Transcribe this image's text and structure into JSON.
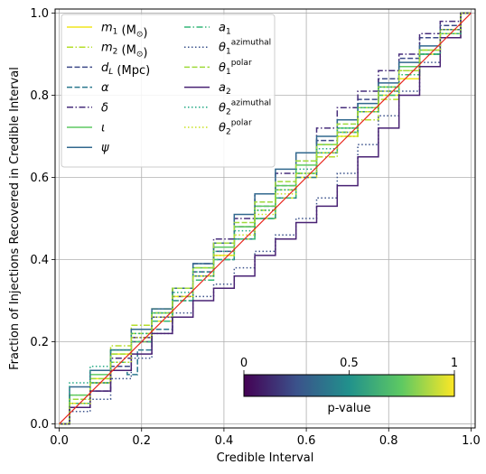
{
  "chart_data": {
    "type": "line",
    "title": "",
    "xlabel": "Credible Interval",
    "ylabel": "Fraction of Injections Recovered in Credible Interval",
    "xlim": [
      -0.01,
      1.01
    ],
    "ylim": [
      -0.01,
      1.01
    ],
    "xticks": [
      "0.0",
      "0.2",
      "0.4",
      "0.6",
      "0.8",
      "1.0"
    ],
    "yticks": [
      "0.0",
      "0.2",
      "0.4",
      "0.6",
      "0.8",
      "1.0"
    ],
    "grid": true,
    "legend_position": "upper-left",
    "diagonal": {
      "x": [
        0,
        1
      ],
      "y": [
        0,
        1
      ],
      "color": "#e8251b"
    },
    "colorbar": {
      "label": "p-value",
      "ticks": [
        "0",
        "0.5",
        "1"
      ],
      "colors": [
        "#440154",
        "#3b528b",
        "#21918c",
        "#5ec962",
        "#fde725"
      ]
    },
    "series": [
      {
        "name": "$m_1$ (M$_\\odot$)",
        "legend_parts": [
          {
            "t": "m",
            "i": true
          },
          {
            "t": "1",
            "sub": true
          },
          {
            "t": " (M"
          },
          {
            "t": "⊙",
            "sub": true
          },
          {
            "t": ")"
          }
        ],
        "color": "#f1e51d",
        "style": "solid",
        "x": [
          0,
          0.05,
          0.1,
          0.15,
          0.2,
          0.25,
          0.3,
          0.35,
          0.4,
          0.45,
          0.5,
          0.55,
          0.6,
          0.65,
          0.7,
          0.75,
          0.8,
          0.85,
          0.9,
          0.95,
          1
        ],
        "y": [
          0,
          0.05,
          0.11,
          0.17,
          0.2,
          0.25,
          0.31,
          0.36,
          0.41,
          0.45,
          0.5,
          0.55,
          0.6,
          0.66,
          0.7,
          0.76,
          0.8,
          0.84,
          0.9,
          0.95,
          1
        ]
      },
      {
        "name": "$m_2$ (M$_\\odot$)",
        "legend_parts": [
          {
            "t": "m",
            "i": true
          },
          {
            "t": "2",
            "sub": true
          },
          {
            "t": " (M"
          },
          {
            "t": "⊙",
            "sub": true
          },
          {
            "t": ")"
          }
        ],
        "color": "#b5de2b",
        "style": "dashdot",
        "x": [
          0,
          0.05,
          0.1,
          0.15,
          0.2,
          0.25,
          0.3,
          0.35,
          0.4,
          0.45,
          0.5,
          0.55,
          0.6,
          0.65,
          0.7,
          0.75,
          0.8,
          0.85,
          0.9,
          0.95,
          1
        ],
        "y": [
          0,
          0.07,
          0.13,
          0.19,
          0.24,
          0.28,
          0.33,
          0.38,
          0.43,
          0.48,
          0.52,
          0.57,
          0.61,
          0.65,
          0.7,
          0.74,
          0.79,
          0.85,
          0.9,
          0.94,
          1
        ]
      },
      {
        "name": "$d_L$ (Mpc)",
        "legend_parts": [
          {
            "t": "d",
            "i": true
          },
          {
            "t": "L",
            "sub": true,
            "i": true
          },
          {
            "t": " (Mpc)"
          }
        ],
        "color": "#3e4a89",
        "style": "dashed",
        "x": [
          0,
          0.05,
          0.1,
          0.15,
          0.2,
          0.25,
          0.3,
          0.35,
          0.4,
          0.45,
          0.5,
          0.55,
          0.6,
          0.65,
          0.7,
          0.75,
          0.8,
          0.85,
          0.9,
          0.95,
          1
        ],
        "y": [
          0,
          0.04,
          0.08,
          0.14,
          0.2,
          0.26,
          0.31,
          0.37,
          0.42,
          0.48,
          0.53,
          0.58,
          0.64,
          0.69,
          0.74,
          0.79,
          0.84,
          0.89,
          0.94,
          0.97,
          1
        ]
      },
      {
        "name": "$\\alpha$",
        "legend_parts": [
          {
            "t": "α",
            "i": true
          }
        ],
        "color": "#2a788e",
        "style": "dashed",
        "x": [
          0,
          0.05,
          0.1,
          0.15,
          0.18,
          0.2,
          0.25,
          0.3,
          0.35,
          0.4,
          0.45,
          0.5,
          0.55,
          0.6,
          0.65,
          0.7,
          0.75,
          0.8,
          0.85,
          0.9,
          0.95,
          1
        ],
        "y": [
          0,
          0.06,
          0.1,
          0.13,
          0.12,
          0.18,
          0.23,
          0.3,
          0.36,
          0.4,
          0.45,
          0.5,
          0.55,
          0.6,
          0.66,
          0.71,
          0.76,
          0.81,
          0.86,
          0.9,
          0.96,
          1
        ]
      },
      {
        "name": "$\\delta$",
        "legend_parts": [
          {
            "t": "δ",
            "i": true
          }
        ],
        "color": "#472d7b",
        "style": "dashdot",
        "x": [
          0,
          0.05,
          0.1,
          0.15,
          0.2,
          0.25,
          0.3,
          0.35,
          0.4,
          0.45,
          0.5,
          0.55,
          0.6,
          0.65,
          0.7,
          0.75,
          0.8,
          0.85,
          0.9,
          0.95,
          1
        ],
        "y": [
          0,
          0.05,
          0.1,
          0.16,
          0.21,
          0.27,
          0.33,
          0.39,
          0.45,
          0.5,
          0.56,
          0.61,
          0.66,
          0.72,
          0.77,
          0.81,
          0.86,
          0.9,
          0.95,
          0.98,
          1
        ]
      },
      {
        "name": "$\\iota$",
        "legend_parts": [
          {
            "t": "ι",
            "i": true
          }
        ],
        "color": "#5ec962",
        "style": "solid",
        "x": [
          0,
          0.05,
          0.1,
          0.15,
          0.2,
          0.25,
          0.3,
          0.35,
          0.4,
          0.45,
          0.5,
          0.55,
          0.6,
          0.65,
          0.7,
          0.75,
          0.8,
          0.85,
          0.9,
          0.95,
          1
        ],
        "y": [
          0,
          0.07,
          0.12,
          0.18,
          0.23,
          0.27,
          0.33,
          0.38,
          0.43,
          0.48,
          0.53,
          0.58,
          0.63,
          0.68,
          0.72,
          0.77,
          0.82,
          0.87,
          0.91,
          0.96,
          1
        ]
      },
      {
        "name": "$\\psi$",
        "legend_parts": [
          {
            "t": "ψ",
            "i": true
          }
        ],
        "color": "#31688e",
        "style": "solid",
        "x": [
          0,
          0.05,
          0.1,
          0.15,
          0.2,
          0.25,
          0.3,
          0.35,
          0.4,
          0.45,
          0.5,
          0.55,
          0.6,
          0.65,
          0.7,
          0.75,
          0.8,
          0.85,
          0.9,
          0.95,
          1
        ],
        "y": [
          0,
          0.09,
          0.13,
          0.18,
          0.23,
          0.28,
          0.33,
          0.39,
          0.44,
          0.51,
          0.56,
          0.62,
          0.66,
          0.7,
          0.74,
          0.78,
          0.83,
          0.88,
          0.92,
          0.96,
          1
        ]
      },
      {
        "name": "$a_1$",
        "legend_parts": [
          {
            "t": "a",
            "i": true
          },
          {
            "t": "1",
            "sub": true
          }
        ],
        "color": "#35b779",
        "style": "dashdot",
        "x": [
          0,
          0.05,
          0.1,
          0.15,
          0.2,
          0.25,
          0.3,
          0.35,
          0.4,
          0.45,
          0.5,
          0.55,
          0.6,
          0.65,
          0.7,
          0.75,
          0.8,
          0.85,
          0.9,
          0.95,
          1
        ],
        "y": [
          0,
          0.05,
          0.1,
          0.15,
          0.2,
          0.25,
          0.3,
          0.35,
          0.4,
          0.45,
          0.5,
          0.55,
          0.61,
          0.66,
          0.71,
          0.76,
          0.8,
          0.85,
          0.9,
          0.95,
          1
        ]
      },
      {
        "name": "$\\theta_1^{azimuthal}$",
        "legend_parts": [
          {
            "t": "θ",
            "i": true
          },
          {
            "t": "1",
            "sub": true
          },
          {
            "t": "azimuthal",
            "sup": true
          }
        ],
        "color": "#3b528b",
        "style": "dotted",
        "x": [
          0,
          0.05,
          0.1,
          0.15,
          0.2,
          0.25,
          0.3,
          0.35,
          0.4,
          0.45,
          0.5,
          0.55,
          0.6,
          0.65,
          0.7,
          0.75,
          0.8,
          0.85,
          0.9,
          0.95,
          1
        ],
        "y": [
          0,
          0.03,
          0.06,
          0.11,
          0.16,
          0.22,
          0.27,
          0.31,
          0.34,
          0.38,
          0.42,
          0.46,
          0.5,
          0.55,
          0.61,
          0.68,
          0.75,
          0.81,
          0.88,
          0.94,
          1
        ]
      },
      {
        "name": "$\\theta_1^{polar}$",
        "legend_parts": [
          {
            "t": "θ",
            "i": true
          },
          {
            "t": "1",
            "sub": true
          },
          {
            "t": "polar",
            "sup": true
          }
        ],
        "color": "#9fda3a",
        "style": "dashed",
        "x": [
          0,
          0.05,
          0.1,
          0.15,
          0.2,
          0.25,
          0.3,
          0.35,
          0.4,
          0.45,
          0.5,
          0.55,
          0.6,
          0.65,
          0.7,
          0.75,
          0.8,
          0.85,
          0.9,
          0.95,
          1
        ],
        "y": [
          0,
          0.06,
          0.11,
          0.17,
          0.22,
          0.27,
          0.33,
          0.38,
          0.44,
          0.49,
          0.54,
          0.59,
          0.64,
          0.68,
          0.73,
          0.77,
          0.82,
          0.86,
          0.91,
          0.95,
          1
        ]
      },
      {
        "name": "$a_2$",
        "legend_parts": [
          {
            "t": "a",
            "i": true
          },
          {
            "t": "2",
            "sub": true
          }
        ],
        "color": "#482173",
        "style": "solid",
        "x": [
          0,
          0.05,
          0.1,
          0.15,
          0.2,
          0.25,
          0.3,
          0.35,
          0.4,
          0.45,
          0.5,
          0.55,
          0.6,
          0.65,
          0.7,
          0.75,
          0.8,
          0.85,
          0.9,
          0.95,
          1
        ],
        "y": [
          0,
          0.04,
          0.08,
          0.13,
          0.17,
          0.22,
          0.26,
          0.3,
          0.33,
          0.36,
          0.41,
          0.45,
          0.49,
          0.53,
          0.58,
          0.65,
          0.72,
          0.8,
          0.87,
          0.94,
          1
        ]
      },
      {
        "name": "$\\theta_2^{azimuthal}$",
        "legend_parts": [
          {
            "t": "θ",
            "i": true
          },
          {
            "t": "2",
            "sub": true
          },
          {
            "t": "azimuthal",
            "sup": true
          }
        ],
        "color": "#22a884",
        "style": "dotted",
        "x": [
          0,
          0.05,
          0.1,
          0.15,
          0.2,
          0.25,
          0.3,
          0.35,
          0.4,
          0.45,
          0.5,
          0.55,
          0.6,
          0.65,
          0.7,
          0.75,
          0.8,
          0.85,
          0.9,
          0.95,
          1
        ],
        "y": [
          0,
          0.1,
          0.14,
          0.18,
          0.22,
          0.27,
          0.32,
          0.37,
          0.42,
          0.47,
          0.52,
          0.57,
          0.62,
          0.67,
          0.72,
          0.77,
          0.82,
          0.86,
          0.9,
          0.95,
          1
        ]
      },
      {
        "name": "$\\theta_2^{polar}$",
        "legend_parts": [
          {
            "t": "θ",
            "i": true
          },
          {
            "t": "2",
            "sub": true
          },
          {
            "t": "polar",
            "sup": true
          }
        ],
        "color": "#c8e020",
        "style": "dotted",
        "x": [
          0,
          0.05,
          0.1,
          0.15,
          0.2,
          0.25,
          0.3,
          0.35,
          0.4,
          0.45,
          0.5,
          0.55,
          0.6,
          0.65,
          0.7,
          0.75,
          0.8,
          0.85,
          0.9,
          0.95,
          1
        ],
        "y": [
          0,
          0.05,
          0.1,
          0.15,
          0.21,
          0.26,
          0.31,
          0.36,
          0.41,
          0.46,
          0.51,
          0.56,
          0.61,
          0.66,
          0.71,
          0.76,
          0.81,
          0.86,
          0.91,
          0.96,
          1
        ]
      }
    ]
  }
}
